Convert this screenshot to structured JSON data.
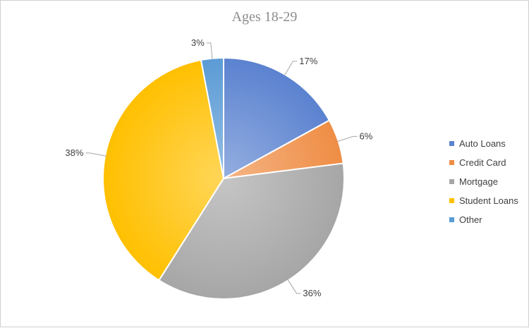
{
  "chart_data": {
    "type": "pie",
    "title": "Ages 18-29",
    "categories": [
      "Auto Loans",
      "Credit Card",
      "Mortgage",
      "Student Loans",
      "Other"
    ],
    "values": [
      17,
      6,
      36,
      38,
      3
    ],
    "value_labels": [
      "17%",
      "6%",
      "36%",
      "38%",
      "3%"
    ],
    "colors": [
      "#5b82d0",
      "#ef8d45",
      "#a6a6a6",
      "#ffc000",
      "#5b9bd5"
    ],
    "legend_position": "right"
  }
}
